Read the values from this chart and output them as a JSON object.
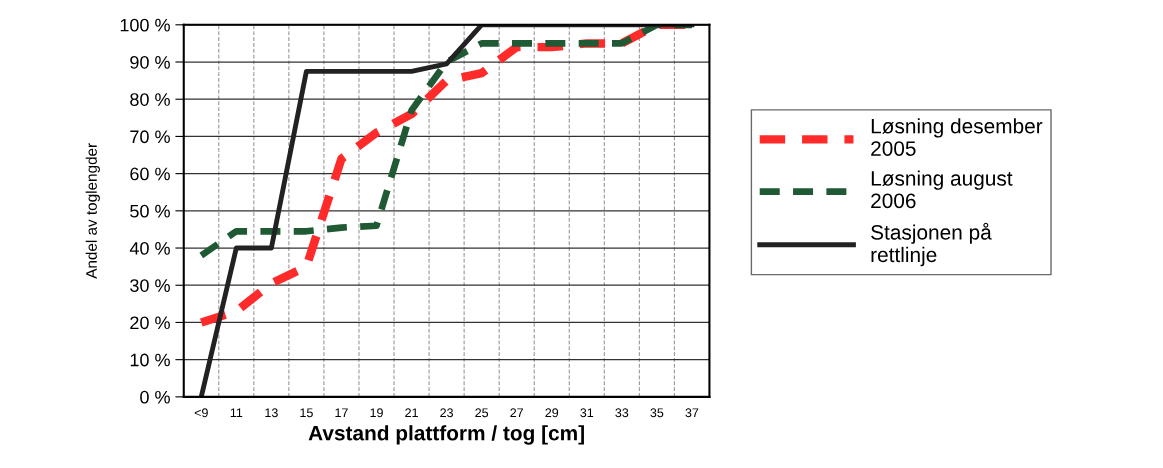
{
  "chart_data": {
    "type": "line",
    "xlabel": "Avstand plattform / tog [cm]",
    "ylabel": "Andel av toglengder",
    "categories": [
      "<9",
      "11",
      "13",
      "15",
      "17",
      "19",
      "21",
      "23",
      "25",
      "27",
      "29",
      "31",
      "33",
      "35",
      "37"
    ],
    "series": [
      {
        "name": "Løsning desember\n2005",
        "color": "#ff2a2a",
        "line_style": "dashed",
        "values": [
          20,
          23,
          30.5,
          35,
          64,
          71,
          76,
          85,
          87,
          94,
          94,
          95,
          95,
          100,
          100
        ]
      },
      {
        "name": "Løsning august\n2006",
        "color": "#1f5a34",
        "line_style": "dashed",
        "values": [
          38,
          44.5,
          44.5,
          44.5,
          45.5,
          46,
          77,
          90,
          95,
          95,
          95,
          95,
          95,
          100,
          100
        ]
      },
      {
        "name": "Stasjonen på\nrettlinje",
        "color": "#222222",
        "line_style": "solid",
        "values": [
          0,
          40,
          40,
          87.5,
          87.5,
          87.5,
          87.5,
          89.5,
          100,
          100,
          100,
          100,
          100,
          100,
          100
        ]
      }
    ],
    "ylim": [
      0,
      100
    ],
    "yticks": [
      {
        "value": 0,
        "label": "0 %"
      },
      {
        "value": 10,
        "label": "10 %"
      },
      {
        "value": 20,
        "label": "20 %"
      },
      {
        "value": 30,
        "label": "30 %"
      },
      {
        "value": 40,
        "label": "40 %"
      },
      {
        "value": 50,
        "label": "50 %"
      },
      {
        "value": 60,
        "label": "60 %"
      },
      {
        "value": 70,
        "label": "70 %"
      },
      {
        "value": 80,
        "label": "80 %"
      },
      {
        "value": 90,
        "label": "90 %"
      },
      {
        "value": 100,
        "label": "100 %"
      }
    ],
    "grid": true,
    "legend": "right",
    "marker": "none"
  }
}
